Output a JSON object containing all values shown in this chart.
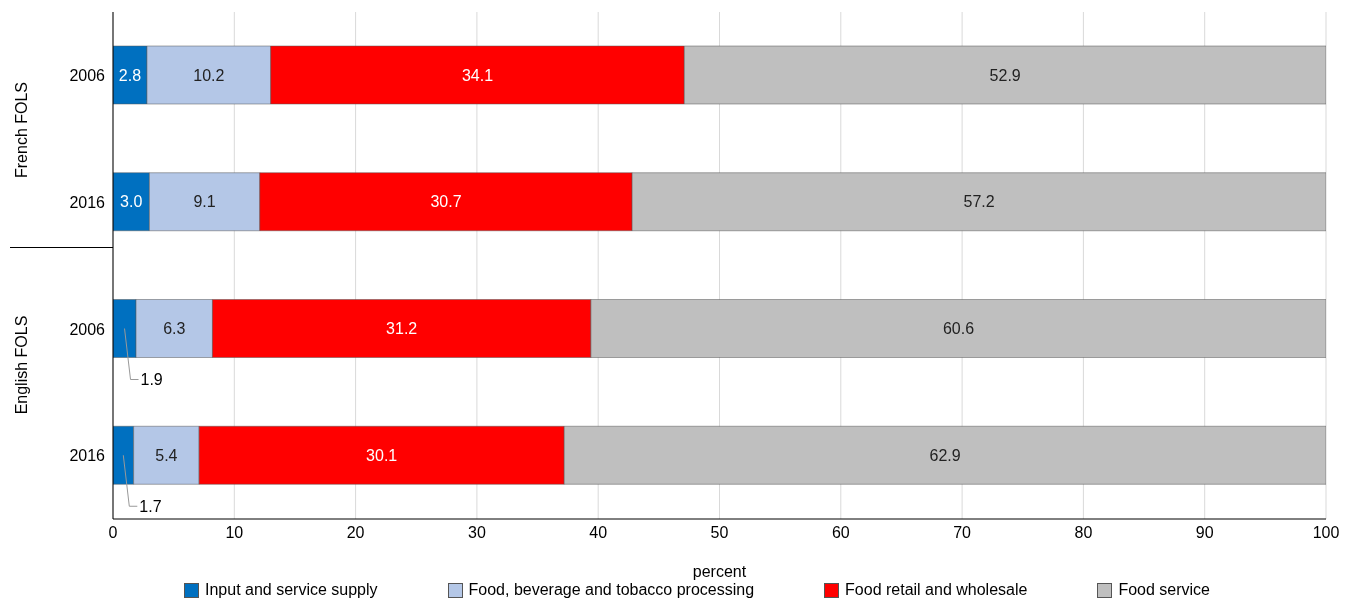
{
  "chart_data": {
    "type": "bar",
    "orientation": "horizontal",
    "stacked": true,
    "categories": [
      "2006",
      "2016",
      "2006",
      "2016"
    ],
    "series": [
      {
        "name": "Input and service supply",
        "color": "#0070c0",
        "values": [
          2.8,
          3.0,
          1.9,
          1.7
        ],
        "value_labels": [
          "2.8",
          "3.0",
          "1.9",
          "1.7"
        ]
      },
      {
        "name": "Food, beverage and tobacco processing",
        "color": "#b4c7e7",
        "values": [
          10.2,
          9.1,
          6.3,
          5.4
        ],
        "value_labels": [
          "10.2",
          "9.1",
          "6.3",
          "5.4"
        ]
      },
      {
        "name": "Food retail and wholesale",
        "color": "#ff0000",
        "values": [
          34.1,
          30.7,
          31.2,
          30.1
        ],
        "value_labels": [
          "34.1",
          "30.7",
          "31.2",
          "30.1"
        ]
      },
      {
        "name": "Food service",
        "color": "#bfbfbf",
        "values": [
          52.9,
          57.2,
          60.6,
          62.9
        ],
        "value_labels": [
          "52.9",
          "57.2",
          "60.6",
          "62.9"
        ]
      }
    ],
    "xlim": [
      0,
      100
    ],
    "xticks": [
      0,
      10,
      20,
      30,
      40,
      50,
      60,
      70,
      80,
      90,
      100
    ],
    "xlabel": "percent",
    "grid": "x",
    "legend": "bottom",
    "annotations": [
      "French FOLS",
      "English FOLS"
    ]
  }
}
